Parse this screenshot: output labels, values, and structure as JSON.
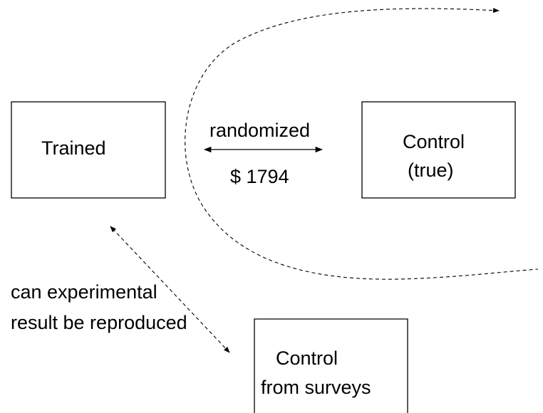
{
  "nodes": [
    {
      "lines": [
        "Trained"
      ]
    },
    {
      "lines": [
        "Control",
        "(true)"
      ]
    },
    {
      "lines": [
        "Control",
        "from surveys"
      ]
    }
  ],
  "edges": [
    {
      "lines": [
        "randomized",
        "$ 1794"
      ]
    },
    {
      "lines": [
        "can experimental",
        "result be reproduced"
      ]
    }
  ]
}
